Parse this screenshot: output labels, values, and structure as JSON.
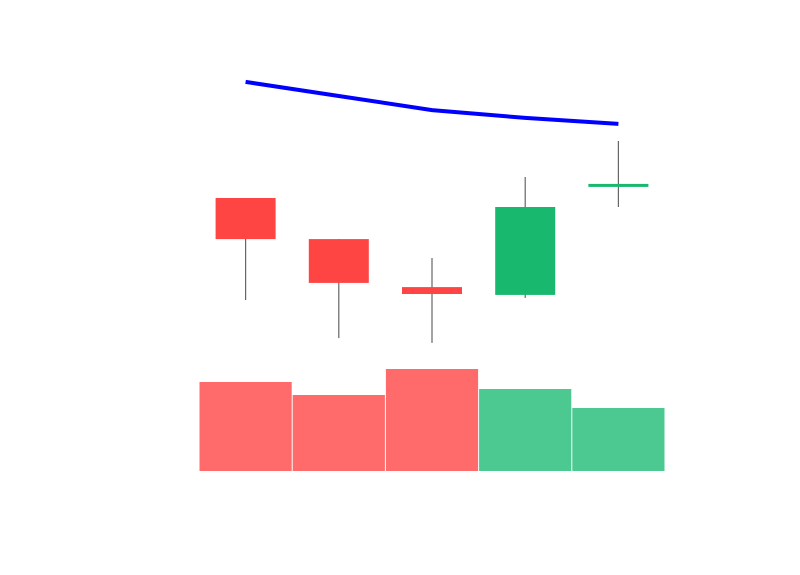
{
  "chart_data": {
    "type": "candlestick",
    "open": [
      54,
      40.3,
      24.3,
      21.7,
      58
    ],
    "high": [
      54,
      40.3,
      34,
      61,
      73
    ],
    "low": [
      20,
      7.3,
      5.7,
      20.7,
      51
    ],
    "close": [
      40.3,
      25.7,
      22,
      51,
      58.7
    ],
    "ma": [
      92.7,
      88,
      83.3,
      80.7,
      78.7
    ],
    "volume": [
      89,
      76,
      102,
      82,
      63
    ],
    "ylim": [
      0,
      100
    ],
    "volume_lim": [
      0,
      120
    ],
    "up_color": "#18b86f",
    "down_color": "#ff4444",
    "volume_up_color": "#4cc891",
    "volume_down_color": "#ff6b6b",
    "wick_color": "#666666",
    "ma_color": "#0000ff"
  }
}
